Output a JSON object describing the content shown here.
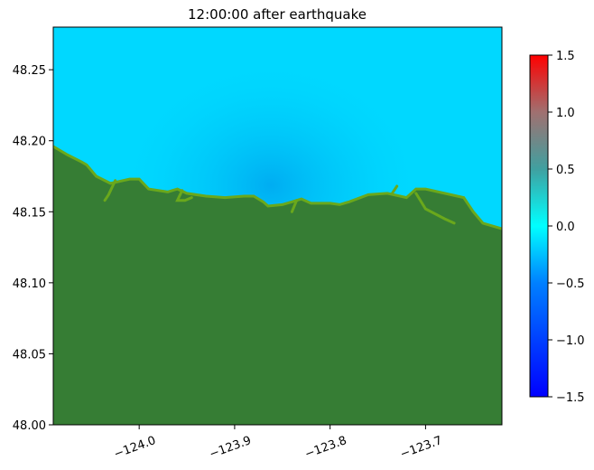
{
  "chart_data": {
    "type": "heatmap",
    "title": "12:00:00 after earthquake",
    "xlabel": "",
    "ylabel": "",
    "xlim": [
      -124.09,
      -123.62
    ],
    "ylim": [
      48.0,
      48.28
    ],
    "x_ticks": [
      -124.0,
      -123.9,
      -123.8,
      -123.7
    ],
    "x_tick_labels": [
      "−124.0",
      "−123.9",
      "−123.8",
      "−123.7"
    ],
    "y_ticks": [
      48.0,
      48.05,
      48.1,
      48.15,
      48.2,
      48.25
    ],
    "y_tick_labels": [
      "48.00",
      "48.05",
      "48.10",
      "48.15",
      "48.20",
      "48.25"
    ],
    "colorbar": {
      "vmin": -1.5,
      "vmax": 1.5,
      "ticks": [
        -1.5,
        -1.0,
        -0.5,
        0.0,
        0.5,
        1.0,
        1.5
      ],
      "tick_labels": [
        "−1.5",
        "−1.0",
        "−0.5",
        "0.0",
        "0.5",
        "1.0",
        "1.5"
      ],
      "colormap": [
        {
          "value": -1.5,
          "color": "#0000ff"
        },
        {
          "value": -0.5,
          "color": "#0080ff"
        },
        {
          "value": 0.0,
          "color": "#00ffff"
        },
        {
          "value": 0.5,
          "color": "#40a0a0"
        },
        {
          "value": 1.0,
          "color": "#a07070"
        },
        {
          "value": 1.5,
          "color": "#ff0000"
        }
      ]
    },
    "land_color": "#367d34",
    "shore_color": "#6aa81c",
    "water_color": "#00d8ff",
    "depression_color": "#00a8f0",
    "coastline": [
      [
        -124.09,
        48.196
      ],
      [
        -124.075,
        48.19
      ],
      [
        -124.06,
        48.185
      ],
      [
        -124.055,
        48.183
      ],
      [
        -124.045,
        48.175
      ],
      [
        -124.03,
        48.17
      ],
      [
        -124.01,
        48.173
      ],
      [
        -124.0,
        48.173
      ],
      [
        -123.99,
        48.166
      ],
      [
        -123.97,
        48.164
      ],
      [
        -123.96,
        48.166
      ],
      [
        -123.95,
        48.163
      ],
      [
        -123.93,
        48.161
      ],
      [
        -123.91,
        48.16
      ],
      [
        -123.89,
        48.161
      ],
      [
        -123.88,
        48.161
      ],
      [
        -123.87,
        48.157
      ],
      [
        -123.865,
        48.154
      ],
      [
        -123.85,
        48.155
      ],
      [
        -123.84,
        48.157
      ],
      [
        -123.83,
        48.159
      ],
      [
        -123.82,
        48.156
      ],
      [
        -123.8,
        48.156
      ],
      [
        -123.79,
        48.155
      ],
      [
        -123.78,
        48.157
      ],
      [
        -123.76,
        48.162
      ],
      [
        -123.74,
        48.163
      ],
      [
        -123.72,
        48.16
      ],
      [
        -123.71,
        48.166
      ],
      [
        -123.7,
        48.166
      ],
      [
        -123.68,
        48.163
      ],
      [
        -123.66,
        48.16
      ],
      [
        -123.65,
        48.15
      ],
      [
        -123.64,
        48.142
      ],
      [
        -123.62,
        48.138
      ]
    ],
    "inlets": [
      {
        "points": [
          [
            -124.025,
            48.172
          ],
          [
            -124.032,
            48.162
          ],
          [
            -124.036,
            48.158
          ]
        ]
      },
      {
        "points": [
          [
            -123.955,
            48.165
          ],
          [
            -123.96,
            48.158
          ],
          [
            -123.952,
            48.158
          ],
          [
            -123.945,
            48.16
          ]
        ]
      },
      {
        "points": [
          [
            -123.835,
            48.158
          ],
          [
            -123.84,
            48.15
          ]
        ]
      },
      {
        "points": [
          [
            -123.71,
            48.163
          ],
          [
            -123.7,
            48.152
          ],
          [
            -123.68,
            48.145
          ],
          [
            -123.67,
            48.142
          ]
        ]
      },
      {
        "points": [
          [
            -123.735,
            48.163
          ],
          [
            -123.73,
            48.168
          ]
        ]
      }
    ]
  }
}
